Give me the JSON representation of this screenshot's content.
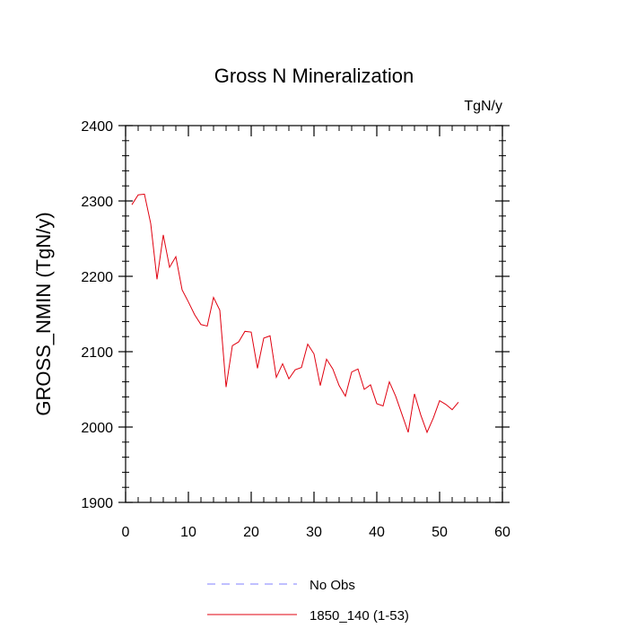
{
  "chart_data": {
    "type": "line",
    "title": "Gross N Mineralization",
    "units_label": "TgN/y",
    "xlabel": "",
    "ylabel": "GROSS_NMIN  (TgN/y)",
    "xlim": [
      0,
      60
    ],
    "ylim": [
      1900,
      2400
    ],
    "x_ticks": [
      0,
      10,
      20,
      30,
      40,
      50,
      60
    ],
    "y_ticks": [
      1900,
      2000,
      2100,
      2200,
      2300,
      2400
    ],
    "grid": false,
    "series": [
      {
        "name": "1850_140 (1-53)",
        "color": "#e0000f",
        "style": "solid",
        "x": [
          1,
          2,
          3,
          4,
          5,
          6,
          7,
          8,
          9,
          10,
          11,
          12,
          13,
          14,
          15,
          16,
          17,
          18,
          19,
          20,
          21,
          22,
          23,
          24,
          25,
          26,
          27,
          28,
          29,
          30,
          31,
          32,
          33,
          34,
          35,
          36,
          37,
          38,
          39,
          40,
          41,
          42,
          43,
          44,
          45,
          46,
          47,
          48,
          49,
          50,
          51,
          52,
          53
        ],
        "values": [
          2295,
          2308,
          2309,
          2270,
          2196,
          2255,
          2212,
          2226,
          2182,
          2166,
          2149,
          2136,
          2134,
          2172,
          2155,
          2053,
          2108,
          2113,
          2127,
          2126,
          2078,
          2118,
          2121,
          2066,
          2084,
          2064,
          2076,
          2079,
          2110,
          2097,
          2055,
          2090,
          2077,
          2055,
          2041,
          2073,
          2077,
          2050,
          2056,
          2031,
          2028,
          2060,
          2041,
          2017,
          1993,
          2044,
          2016,
          1993,
          2012,
          2035,
          2030,
          2023,
          2033
        ]
      },
      {
        "name": "No Obs",
        "color": "#8080ff",
        "style": "dashed",
        "x": [],
        "values": []
      }
    ],
    "legend": {
      "placement": "bottom-center",
      "entries": [
        "No Obs",
        "1850_140 (1-53)"
      ]
    }
  }
}
